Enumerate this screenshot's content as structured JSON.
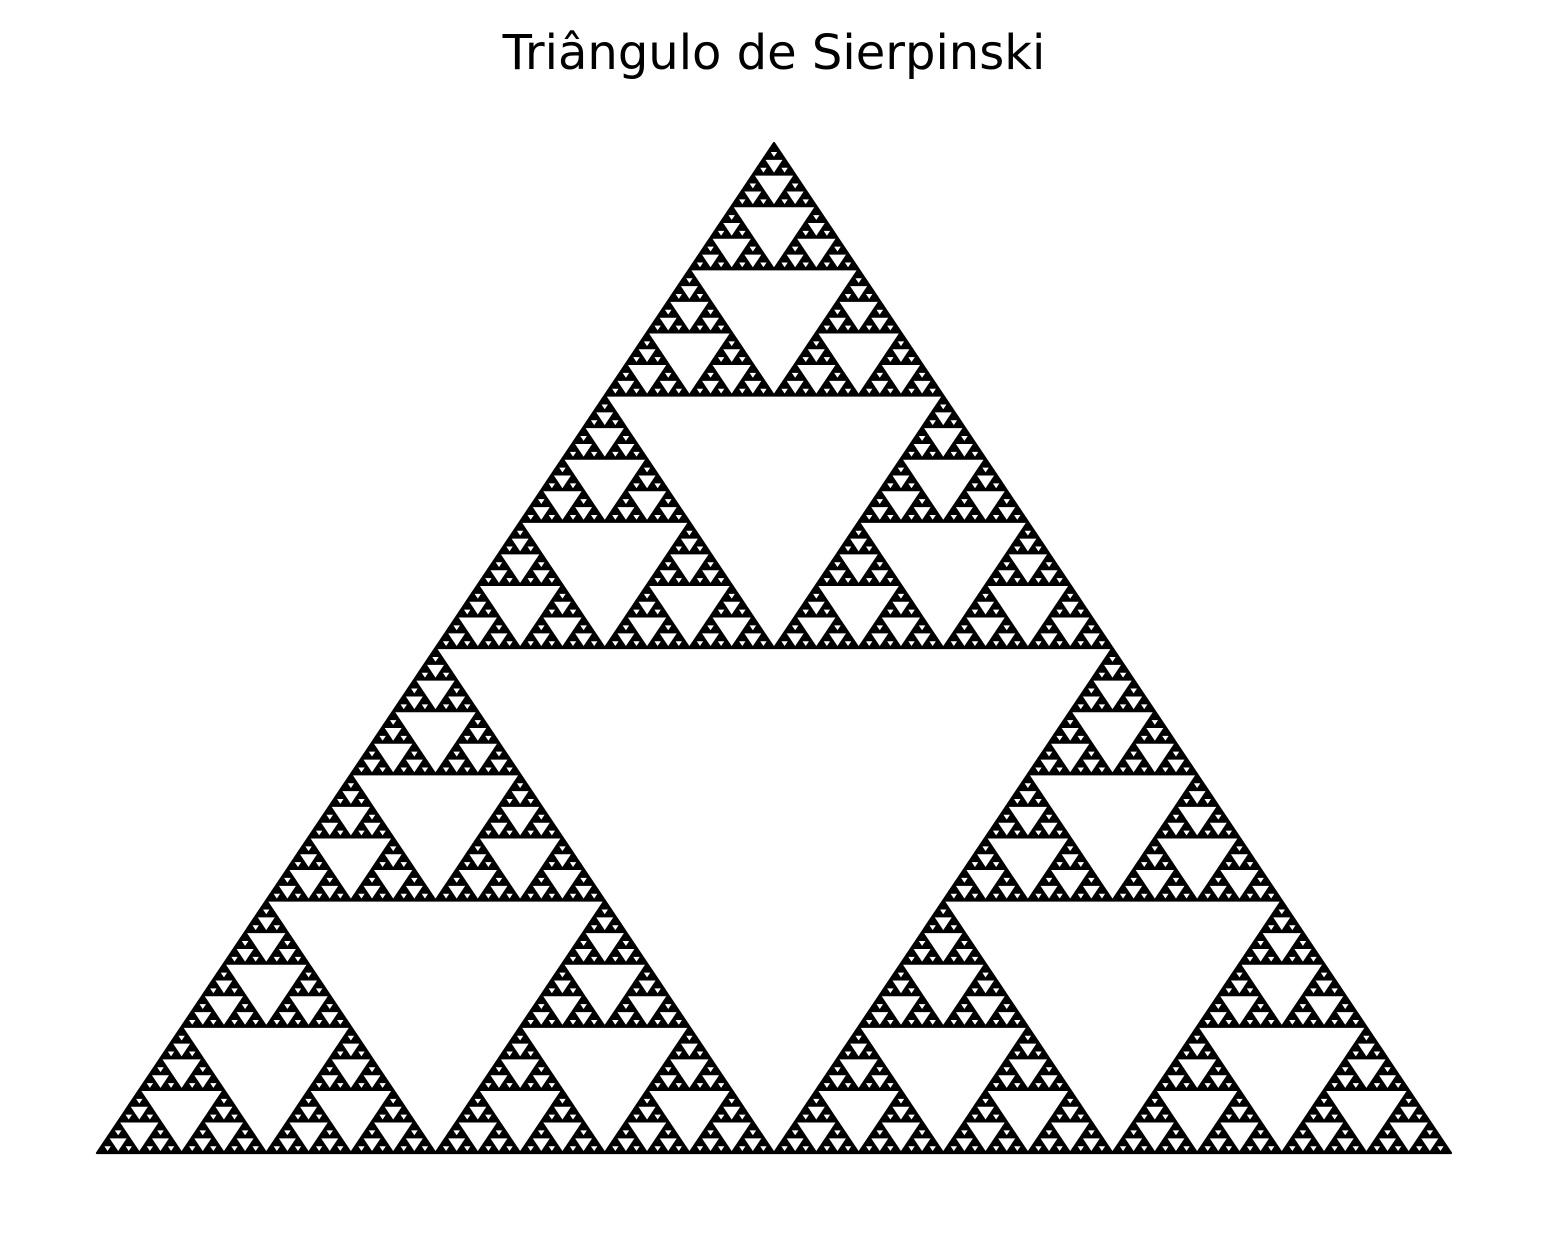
{
  "figure": {
    "title": "Triângulo de Sierpinski"
  },
  "fractal": {
    "shape": "sierpinski-triangle",
    "depth": 7,
    "fill_color": "#000000",
    "background_color": "#ffffff",
    "axes_visible": false
  }
}
